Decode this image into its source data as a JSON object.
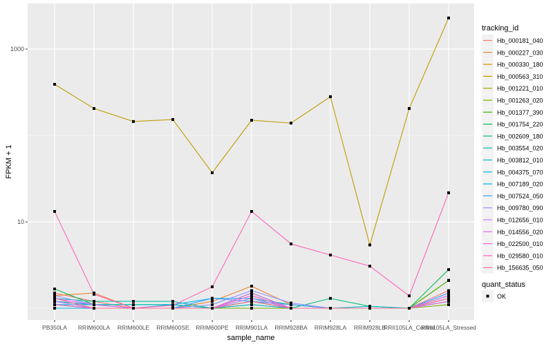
{
  "chart_data": {
    "type": "line",
    "xlabel": "sample_name",
    "ylabel": "FPKM + 1",
    "y_scale": "log10",
    "ylim": [
      0.9,
      2600
    ],
    "y_ticks": [
      10,
      1000
    ],
    "y_tick_labels": [
      "10",
      "1000"
    ],
    "grid": true,
    "legend_placement": "right",
    "categories": [
      "PB350LA",
      "RRIM600LA",
      "RRIM600LE",
      "RRIM600SE",
      "RRIM600PE",
      "RRIM901LA",
      "RRIM928BA",
      "RRIM928LA",
      "RRIM928LB",
      "RRII105LA_Control",
      "RRII105LA_Stressed"
    ],
    "legend_title": "tracking_id",
    "shape_legend_title": "quant_status",
    "shape_legend_items": [
      "OK"
    ],
    "series": [
      {
        "name": "Hb_000181_040",
        "color": "#F8766D",
        "values": [
          1.5,
          1.2,
          1.0,
          1.0,
          1.0,
          1.4,
          1.0,
          1.0,
          1.0,
          1.0,
          1.6
        ]
      },
      {
        "name": "Hb_000227_030",
        "color": "#EA8331",
        "values": [
          1.4,
          1.5,
          1.0,
          1.0,
          1.2,
          1.8,
          1.1,
          1.0,
          1.0,
          1.0,
          2.1
        ]
      },
      {
        "name": "Hb_000330_180",
        "color": "#D89000",
        "values": [
          1.1,
          1.0,
          1.0,
          1.0,
          1.0,
          1.2,
          1.0,
          1.0,
          1.0,
          1.0,
          1.4
        ]
      },
      {
        "name": "Hb_000563_310",
        "color": "#C09B00",
        "values": [
          391,
          205,
          145,
          153,
          37,
          150,
          139,
          281,
          5.4,
          205,
          2290
        ]
      },
      {
        "name": "Hb_001221_010",
        "color": "#A3A500",
        "values": [
          1.0,
          1.0,
          1.0,
          1.0,
          1.0,
          1.1,
          1.0,
          1.0,
          1.0,
          1.0,
          1.2
        ]
      },
      {
        "name": "Hb_001263_020",
        "color": "#7CAE00",
        "values": [
          1.0,
          1.0,
          1.0,
          1.0,
          1.0,
          1.0,
          1.0,
          1.0,
          1.0,
          1.0,
          1.1
        ]
      },
      {
        "name": "Hb_001377_390",
        "color": "#39B600",
        "values": [
          1.1,
          1.0,
          1.0,
          1.0,
          1.0,
          1.2,
          1.0,
          1.0,
          1.0,
          1.0,
          2.1
        ]
      },
      {
        "name": "Hb_001754_220",
        "color": "#00BB4E",
        "values": [
          1.67,
          1.1,
          1.0,
          1.0,
          1.0,
          1.5,
          1.0,
          1.0,
          1.0,
          1.0,
          2.8
        ]
      },
      {
        "name": "Hb_002609_180",
        "color": "#00BF7D",
        "values": [
          1.2,
          1.1,
          1.1,
          1.1,
          1.0,
          1.5,
          1.0,
          1.3,
          1.05,
          1.0,
          1.3
        ]
      },
      {
        "name": "Hb_003554_020",
        "color": "#00C1A3",
        "values": [
          1.3,
          1.2,
          1.2,
          1.2,
          1.0,
          1.3,
          1.1,
          1.0,
          1.0,
          1.0,
          1.2
        ]
      },
      {
        "name": "Hb_003812_010",
        "color": "#00BFC4",
        "values": [
          1.1,
          1.1,
          1.1,
          1.1,
          1.0,
          1.2,
          1.0,
          1.0,
          1.05,
          1.0,
          1.3
        ]
      },
      {
        "name": "Hb_004375_070",
        "color": "#00BAE0",
        "values": [
          1.0,
          1.0,
          1.0,
          1.0,
          1.0,
          1.1,
          1.0,
          1.0,
          1.0,
          1.0,
          1.2
        ]
      },
      {
        "name": "Hb_007189_020",
        "color": "#00B0F6",
        "values": [
          1.2,
          1.1,
          1.0,
          1.1,
          1.3,
          1.3,
          1.0,
          1.0,
          1.0,
          1.0,
          1.4
        ]
      },
      {
        "name": "Hb_007524_050",
        "color": "#35A2FF",
        "values": [
          1.1,
          1.0,
          1.0,
          1.0,
          1.3,
          1.2,
          1.1,
          1.0,
          1.0,
          1.0,
          1.5
        ]
      },
      {
        "name": "Hb_009780_090",
        "color": "#9590FF",
        "values": [
          1.4,
          1.1,
          1.0,
          1.0,
          1.1,
          1.6,
          1.15,
          1.0,
          1.0,
          1.0,
          1.3
        ]
      },
      {
        "name": "Hb_012656_010",
        "color": "#C77CFF",
        "values": [
          1.2,
          1.0,
          1.0,
          1.0,
          1.0,
          1.3,
          1.0,
          1.0,
          1.0,
          1.0,
          1.3
        ]
      },
      {
        "name": "Hb_014556_020",
        "color": "#E76BF3",
        "values": [
          1.3,
          1.1,
          1.0,
          1.0,
          1.0,
          1.5,
          1.0,
          1.0,
          1.0,
          1.0,
          1.4
        ]
      },
      {
        "name": "Hb_022500_010",
        "color": "#FA62DB",
        "values": [
          1.1,
          1.0,
          1.0,
          1.0,
          1.0,
          1.4,
          1.0,
          1.0,
          1.0,
          1.0,
          1.2
        ]
      },
      {
        "name": "Hb_029580_010",
        "color": "#FF62BC",
        "values": [
          13.2,
          1.45,
          1.0,
          1.08,
          1.77,
          13.2,
          5.55,
          4.13,
          3.07,
          1.39,
          21.7
        ]
      },
      {
        "name": "Hb_156635_050",
        "color": "#FF6C91",
        "values": [
          1.3,
          1.0,
          1.0,
          1.0,
          1.0,
          1.2,
          1.0,
          1.0,
          1.0,
          1.0,
          1.3
        ]
      }
    ]
  }
}
